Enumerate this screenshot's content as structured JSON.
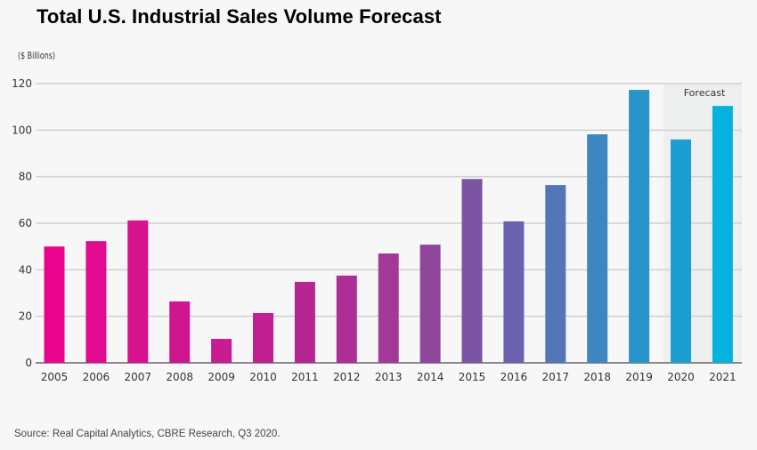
{
  "chart_data": {
    "type": "bar",
    "title": "Total U.S. Industrial Sales Volume Forecast",
    "ylabel": "($ Billions)",
    "xlabel": "",
    "ylim": [
      0,
      120
    ],
    "yticks": [
      0,
      20,
      40,
      60,
      80,
      100,
      120
    ],
    "grid": true,
    "categories": [
      "2005",
      "2006",
      "2007",
      "2008",
      "2009",
      "2010",
      "2011",
      "2012",
      "2013",
      "2014",
      "2015",
      "2016",
      "2017",
      "2018",
      "2019",
      "2020",
      "2021"
    ],
    "values": [
      50.0,
      52.3,
      61.2,
      26.4,
      10.3,
      21.4,
      34.8,
      37.5,
      47.0,
      50.8,
      79.0,
      60.8,
      76.4,
      98.2,
      117.3,
      96.0,
      110.4
    ],
    "colors": [
      "#e8048d",
      "#e20a8e",
      "#d8118e",
      "#cf168f",
      "#c81c90",
      "#c02091",
      "#b52693",
      "#ad2e94",
      "#a33996",
      "#8f479c",
      "#7b53a3",
      "#6a62ac",
      "#5276b6",
      "#3e86c1",
      "#2a93c9",
      "#1b9fd2",
      "#05b2de"
    ],
    "forecast_region": {
      "label": "Forecast",
      "categories": [
        "2020",
        "2021"
      ]
    },
    "source": "Source: Real Capital Analytics, CBRE Research, Q3 2020."
  }
}
